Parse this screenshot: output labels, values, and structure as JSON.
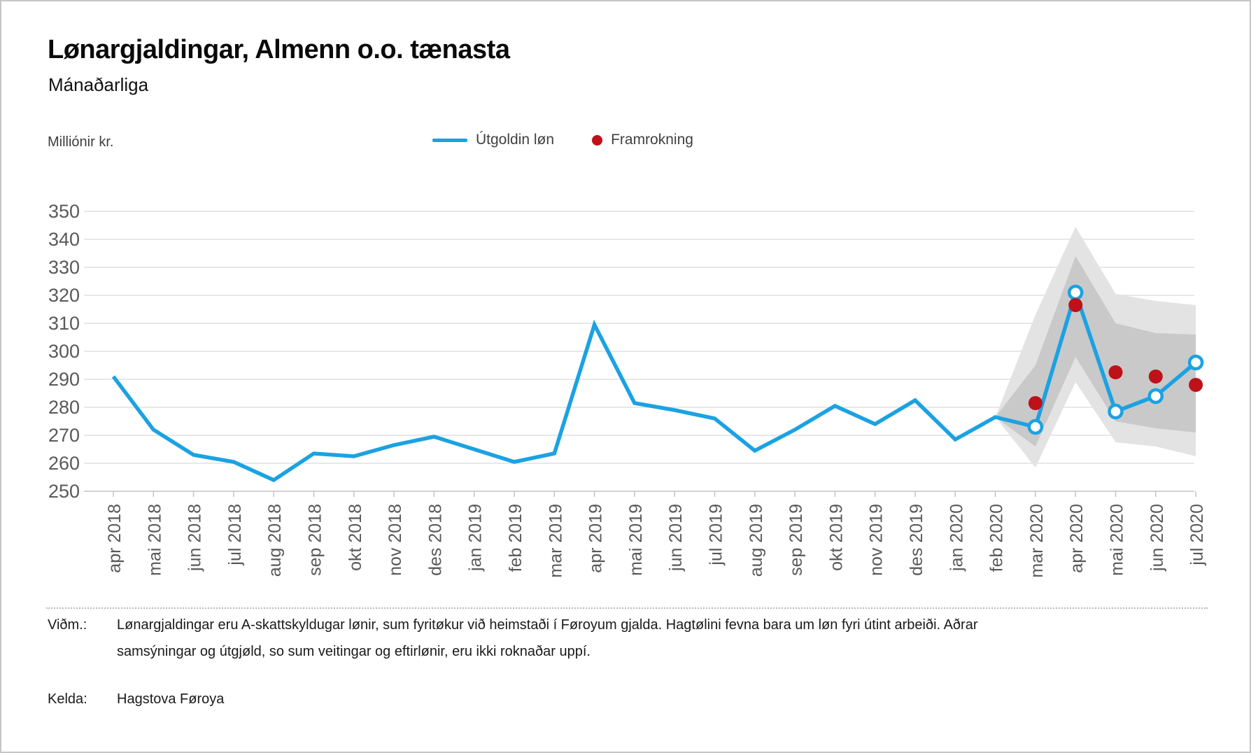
{
  "header": {
    "title": "Lønargjaldingar, Almenn o.o. tænasta",
    "subtitle": "Mánaðarliga"
  },
  "y_axis_unit": "Milliónir kr.",
  "legend": {
    "items": [
      {
        "label": "Útgoldin løn",
        "swatch": "line",
        "color": "#1ba2e2"
      },
      {
        "label": "Framrokning",
        "swatch": "dot",
        "color": "#bf1119"
      }
    ]
  },
  "footer": {
    "notes_label": "Viðm.:",
    "notes": "Lønargjaldingar eru A-skattskyldugar lønir, sum fyritøkur við heimstaði í Føroyum gjalda. Hagtølini fevna bara um løn fyri útint arbeiði. Aðrar samsýningar og útgjøld, so sum veitingar og eftirlønir, eru ikki roknaðar uppí.",
    "source_label": "Kelda:",
    "source": "Hagstova Føroya"
  },
  "chart_data": {
    "type": "line",
    "title": "Lønargjaldingar, Almenn o.o. tænasta",
    "subtitle": "Mánaðarliga",
    "ylabel": "Milliónir kr.",
    "ylim": [
      250,
      350
    ],
    "ytick_step": 10,
    "grid": true,
    "legend_position": "top",
    "categories": [
      "apr 2018",
      "mai 2018",
      "jun 2018",
      "jul 2018",
      "aug 2018",
      "sep 2018",
      "okt 2018",
      "nov 2018",
      "des 2018",
      "jan 2019",
      "feb 2019",
      "mar 2019",
      "apr 2019",
      "mai 2019",
      "jun 2019",
      "jul 2019",
      "aug 2019",
      "sep 2019",
      "okt 2019",
      "nov 2019",
      "des 2019",
      "jan 2020",
      "feb 2020",
      "mar 2020",
      "apr 2020",
      "mai 2020",
      "jun 2020",
      "jul 2020"
    ],
    "series": [
      {
        "name": "Útgoldin løn",
        "type": "line",
        "color": "#1ba2e2",
        "marker_from_index": 23,
        "values": [
          291,
          272,
          263,
          260.5,
          254,
          263.5,
          262.5,
          266.5,
          269.5,
          265,
          260.5,
          263.5,
          309.5,
          281.5,
          279,
          276,
          264.5,
          272,
          280.5,
          274,
          282.5,
          268.5,
          276.5,
          273,
          321,
          278.5,
          284,
          296
        ]
      },
      {
        "name": "Framrokning",
        "type": "points",
        "color": "#bf1119",
        "values": [
          null,
          null,
          null,
          null,
          null,
          null,
          null,
          null,
          null,
          null,
          null,
          null,
          null,
          null,
          null,
          null,
          null,
          null,
          null,
          null,
          null,
          null,
          null,
          281.5,
          316.5,
          292.5,
          291,
          288
        ]
      }
    ],
    "bands": {
      "start_index": 22,
      "outer": {
        "color": "#e3e3e3",
        "upper": [
          276.5,
          313,
          344.5,
          320.5,
          318,
          316.5
        ],
        "lower": [
          276.5,
          258.5,
          289,
          267.5,
          266,
          262.5
        ]
      },
      "inner": {
        "color": "#c9c9c9",
        "upper": [
          276.5,
          295,
          334,
          310,
          306.5,
          306
        ],
        "lower": [
          276.5,
          266,
          298,
          275,
          272.5,
          271
        ]
      }
    },
    "axis_colors": {
      "gridline": "#d9d9d9",
      "axis": "#c3c3c3",
      "tick_label": "#595959"
    }
  }
}
